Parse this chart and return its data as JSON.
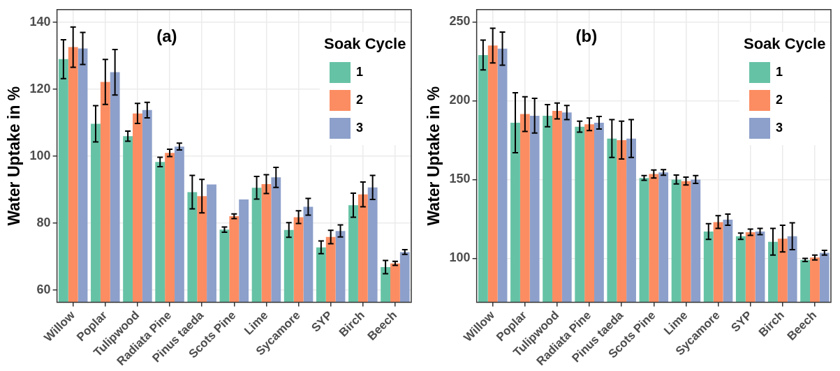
{
  "chart_data": [
    {
      "type": "bar",
      "annotations": [
        "(a)"
      ],
      "ylabel": "Water Uptake in %",
      "legend_title": "Soak Cycle",
      "legend": "top right",
      "grid": true,
      "categories": [
        "Willow",
        "Poplar",
        "Tulipwood",
        "Radiata Pine",
        "Pinus taeda",
        "Scots Pine",
        "Lime",
        "Sycamore",
        "SYP",
        "Birch",
        "Beech"
      ],
      "ylim": [
        56.4,
        143.8
      ],
      "yticks": [
        60,
        80,
        100,
        120,
        140
      ],
      "series": [
        {
          "name": "1",
          "color": "#66c2a5",
          "values": [
            129,
            109.7,
            106,
            98.3,
            89.3,
            78.1,
            90.6,
            78,
            72.8,
            85.4,
            66.9
          ],
          "errors": [
            5.8,
            5.4,
            1.5,
            1.4,
            5,
            0.8,
            3.4,
            2.2,
            1.9,
            3.6,
            2
          ]
        },
        {
          "name": "2",
          "color": "#fc8d62",
          "values": [
            132.6,
            122.2,
            112.8,
            101,
            88.1,
            82.1,
            91.7,
            81.8,
            75.9,
            88.6,
            68
          ],
          "errors": [
            6,
            6.7,
            3,
            1.1,
            5,
            0.7,
            2.8,
            1.9,
            2,
            3.7,
            0.6
          ]
        },
        {
          "name": "3",
          "color": "#8da0cb",
          "values": [
            132.2,
            125.1,
            113.8,
            102.9,
            91.6,
            87.1,
            93.7,
            84.9,
            77.7,
            90.7,
            71.4
          ],
          "errors": [
            4.8,
            6.8,
            2.3,
            1,
            null,
            null,
            3,
            2.5,
            1.8,
            3.6,
            0.7
          ]
        }
      ]
    },
    {
      "type": "bar",
      "annotations": [
        "(b)"
      ],
      "ylabel": "Water Uptake in %",
      "legend_title": "Soak Cycle",
      "legend": "top right",
      "grid": true,
      "categories": [
        "Willow",
        "Poplar",
        "Tulipwood",
        "Radiata Pine",
        "Pinus taeda",
        "Scots Pine",
        "Lime",
        "Sycamore",
        "SYP",
        "Birch",
        "Beech"
      ],
      "ylim": [
        72.1,
        257.8
      ],
      "yticks": [
        100,
        150,
        200,
        250
      ],
      "series": [
        {
          "name": "1",
          "color": "#66c2a5",
          "values": [
            229,
            186,
            190.5,
            183.5,
            176,
            151,
            150,
            117,
            114,
            110.5,
            99
          ],
          "errors": [
            9.5,
            19,
            7,
            3.5,
            12,
            1.5,
            2.8,
            5,
            2,
            8.5,
            1
          ]
        },
        {
          "name": "2",
          "color": "#fc8d62",
          "values": [
            235,
            191.5,
            193.5,
            185,
            175,
            153.5,
            149,
            123,
            116.5,
            112.5,
            100.5
          ],
          "errors": [
            11,
            11,
            5,
            4,
            12,
            2.5,
            2.5,
            4,
            2,
            8.5,
            1.5
          ]
        },
        {
          "name": "3",
          "color": "#8da0cb",
          "values": [
            233,
            190.5,
            192.5,
            186,
            176,
            154.5,
            150,
            124.5,
            117,
            114,
            103.5
          ],
          "errors": [
            10.5,
            11,
            4.5,
            4,
            12,
            1.8,
            2.5,
            3.5,
            2,
            8.5,
            1.5
          ]
        }
      ]
    }
  ]
}
